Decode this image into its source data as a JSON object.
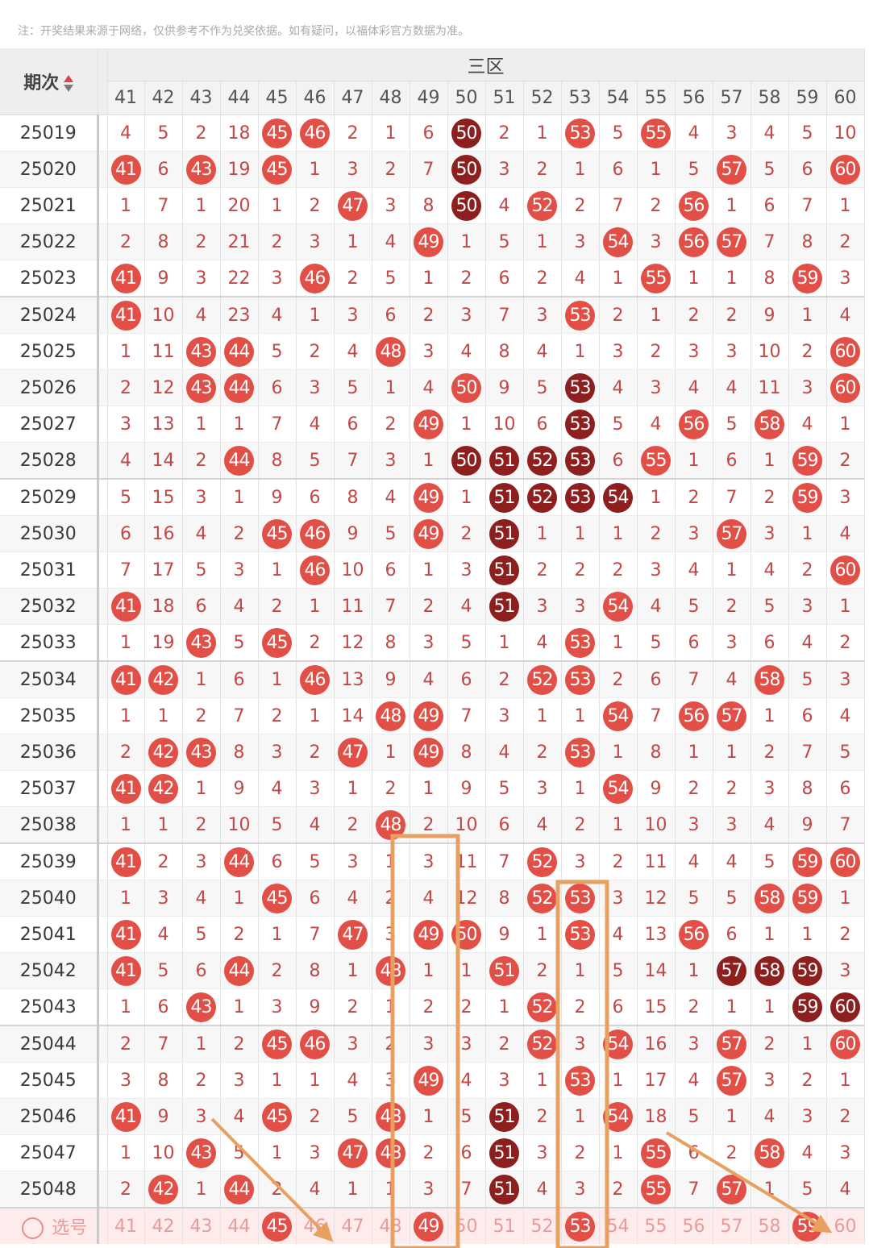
{
  "note": "注：开奖结果来源于网络，仅供参考不作为兑奖依据。如有疑问，以福体彩官方数据为准。",
  "header": {
    "period_label": "期次",
    "zone_label": "三区",
    "sort_icon": "sort-up-down-icon",
    "columns": [
      "41",
      "42",
      "43",
      "44",
      "45",
      "46",
      "47",
      "48",
      "49",
      "50",
      "51",
      "52",
      "53",
      "54",
      "55",
      "56",
      "57",
      "58",
      "59",
      "60"
    ]
  },
  "colors": {
    "hit": "#e14f47",
    "consecutive_hit": "#8e1f1f",
    "miss_text": "#c24848",
    "pick_bg": "#fdeceb",
    "annotation": "#e8a060"
  },
  "rows": [
    {
      "period": "25019",
      "cells": [
        "4",
        "5",
        "2",
        "18",
        "45",
        "46",
        "2",
        "1",
        "6",
        "50",
        "2",
        "1",
        "53",
        "5",
        "55",
        "4",
        "3",
        "4",
        "5",
        "10"
      ],
      "dark": [
        9
      ]
    },
    {
      "period": "25020",
      "cells": [
        "41",
        "6",
        "43",
        "19",
        "45",
        "1",
        "3",
        "2",
        "7",
        "50",
        "3",
        "2",
        "1",
        "6",
        "1",
        "5",
        "57",
        "5",
        "6",
        "60"
      ],
      "dark": [
        9
      ]
    },
    {
      "period": "25021",
      "cells": [
        "1",
        "7",
        "1",
        "20",
        "1",
        "2",
        "47",
        "3",
        "8",
        "50",
        "4",
        "52",
        "2",
        "7",
        "2",
        "56",
        "1",
        "6",
        "7",
        "1"
      ],
      "dark": [
        9
      ]
    },
    {
      "period": "25022",
      "cells": [
        "2",
        "8",
        "2",
        "21",
        "2",
        "3",
        "1",
        "4",
        "49",
        "1",
        "5",
        "1",
        "3",
        "54",
        "3",
        "56",
        "57",
        "7",
        "8",
        "2"
      ],
      "dark": []
    },
    {
      "period": "25023",
      "cells": [
        "41",
        "9",
        "3",
        "22",
        "3",
        "46",
        "2",
        "5",
        "1",
        "2",
        "6",
        "2",
        "4",
        "1",
        "55",
        "1",
        "1",
        "8",
        "59",
        "3"
      ],
      "dark": []
    },
    {
      "period": "25024",
      "cells": [
        "41",
        "10",
        "4",
        "23",
        "4",
        "1",
        "3",
        "6",
        "2",
        "3",
        "7",
        "3",
        "53",
        "2",
        "1",
        "2",
        "2",
        "9",
        "1",
        "4"
      ],
      "dark": []
    },
    {
      "period": "25025",
      "cells": [
        "1",
        "11",
        "43",
        "44",
        "5",
        "2",
        "4",
        "48",
        "3",
        "4",
        "8",
        "4",
        "1",
        "3",
        "2",
        "3",
        "3",
        "10",
        "2",
        "60"
      ],
      "dark": []
    },
    {
      "period": "25026",
      "cells": [
        "2",
        "12",
        "43",
        "44",
        "6",
        "3",
        "5",
        "1",
        "4",
        "50",
        "9",
        "5",
        "53",
        "4",
        "3",
        "4",
        "4",
        "11",
        "3",
        "60"
      ],
      "dark": [
        12
      ]
    },
    {
      "period": "25027",
      "cells": [
        "3",
        "13",
        "1",
        "1",
        "7",
        "4",
        "6",
        "2",
        "49",
        "1",
        "10",
        "6",
        "53",
        "5",
        "4",
        "56",
        "5",
        "58",
        "4",
        "1"
      ],
      "dark": [
        12
      ]
    },
    {
      "period": "25028",
      "cells": [
        "4",
        "14",
        "2",
        "44",
        "8",
        "5",
        "7",
        "3",
        "1",
        "50",
        "51",
        "52",
        "53",
        "6",
        "55",
        "1",
        "6",
        "1",
        "59",
        "2"
      ],
      "dark": [
        9,
        10,
        11,
        12
      ]
    },
    {
      "period": "25029",
      "cells": [
        "5",
        "15",
        "3",
        "1",
        "9",
        "6",
        "8",
        "4",
        "49",
        "1",
        "51",
        "52",
        "53",
        "54",
        "1",
        "2",
        "7",
        "2",
        "59",
        "3"
      ],
      "dark": [
        10,
        11,
        12,
        13
      ]
    },
    {
      "period": "25030",
      "cells": [
        "6",
        "16",
        "4",
        "2",
        "45",
        "46",
        "9",
        "5",
        "49",
        "2",
        "51",
        "1",
        "1",
        "1",
        "2",
        "3",
        "57",
        "3",
        "1",
        "4"
      ],
      "dark": [
        10
      ]
    },
    {
      "period": "25031",
      "cells": [
        "7",
        "17",
        "5",
        "3",
        "1",
        "46",
        "10",
        "6",
        "1",
        "3",
        "51",
        "2",
        "2",
        "2",
        "3",
        "4",
        "1",
        "4",
        "2",
        "60"
      ],
      "dark": [
        10
      ]
    },
    {
      "period": "25032",
      "cells": [
        "41",
        "18",
        "6",
        "4",
        "2",
        "1",
        "11",
        "7",
        "2",
        "4",
        "51",
        "3",
        "3",
        "54",
        "4",
        "5",
        "2",
        "5",
        "3",
        "1"
      ],
      "dark": [
        10
      ]
    },
    {
      "period": "25033",
      "cells": [
        "1",
        "19",
        "43",
        "5",
        "45",
        "2",
        "12",
        "8",
        "3",
        "5",
        "1",
        "4",
        "53",
        "1",
        "5",
        "6",
        "3",
        "6",
        "4",
        "2"
      ],
      "dark": []
    },
    {
      "period": "25034",
      "cells": [
        "41",
        "42",
        "1",
        "6",
        "1",
        "46",
        "13",
        "9",
        "4",
        "6",
        "2",
        "52",
        "53",
        "2",
        "6",
        "7",
        "4",
        "58",
        "5",
        "3"
      ],
      "dark": []
    },
    {
      "period": "25035",
      "cells": [
        "1",
        "1",
        "2",
        "7",
        "2",
        "1",
        "14",
        "48",
        "49",
        "7",
        "3",
        "1",
        "1",
        "54",
        "7",
        "56",
        "57",
        "1",
        "6",
        "4"
      ],
      "dark": []
    },
    {
      "period": "25036",
      "cells": [
        "2",
        "42",
        "43",
        "8",
        "3",
        "2",
        "47",
        "1",
        "49",
        "8",
        "4",
        "2",
        "53",
        "1",
        "8",
        "1",
        "1",
        "2",
        "7",
        "5"
      ],
      "dark": []
    },
    {
      "period": "25037",
      "cells": [
        "41",
        "42",
        "1",
        "9",
        "4",
        "3",
        "1",
        "2",
        "1",
        "9",
        "5",
        "3",
        "1",
        "54",
        "9",
        "2",
        "2",
        "3",
        "8",
        "6"
      ],
      "dark": []
    },
    {
      "period": "25038",
      "cells": [
        "1",
        "1",
        "2",
        "10",
        "5",
        "4",
        "2",
        "48",
        "2",
        "10",
        "6",
        "4",
        "2",
        "1",
        "10",
        "3",
        "3",
        "4",
        "9",
        "7"
      ],
      "dark": []
    },
    {
      "period": "25039",
      "cells": [
        "41",
        "2",
        "3",
        "44",
        "6",
        "5",
        "3",
        "1",
        "3",
        "11",
        "7",
        "52",
        "3",
        "2",
        "11",
        "4",
        "4",
        "5",
        "59",
        "60"
      ],
      "dark": []
    },
    {
      "period": "25040",
      "cells": [
        "1",
        "3",
        "4",
        "1",
        "45",
        "6",
        "4",
        "2",
        "4",
        "12",
        "8",
        "52",
        "53",
        "3",
        "12",
        "5",
        "5",
        "58",
        "59",
        "1"
      ],
      "dark": []
    },
    {
      "period": "25041",
      "cells": [
        "41",
        "4",
        "5",
        "2",
        "1",
        "7",
        "47",
        "3",
        "49",
        "50",
        "9",
        "1",
        "53",
        "4",
        "13",
        "56",
        "6",
        "1",
        "1",
        "2"
      ],
      "dark": []
    },
    {
      "period": "25042",
      "cells": [
        "41",
        "5",
        "6",
        "44",
        "2",
        "8",
        "1",
        "48",
        "1",
        "1",
        "51",
        "2",
        "1",
        "5",
        "14",
        "1",
        "57",
        "58",
        "59",
        "3"
      ],
      "dark": [
        16,
        17,
        18
      ]
    },
    {
      "period": "25043",
      "cells": [
        "1",
        "6",
        "43",
        "1",
        "3",
        "9",
        "2",
        "1",
        "2",
        "2",
        "1",
        "52",
        "2",
        "6",
        "15",
        "2",
        "1",
        "1",
        "59",
        "60"
      ],
      "dark": [
        18,
        19
      ]
    },
    {
      "period": "25044",
      "cells": [
        "2",
        "7",
        "1",
        "2",
        "45",
        "46",
        "3",
        "2",
        "3",
        "3",
        "2",
        "52",
        "3",
        "54",
        "16",
        "3",
        "57",
        "2",
        "1",
        "60"
      ],
      "dark": []
    },
    {
      "period": "25045",
      "cells": [
        "3",
        "8",
        "2",
        "3",
        "1",
        "1",
        "4",
        "3",
        "49",
        "4",
        "3",
        "1",
        "53",
        "1",
        "17",
        "4",
        "57",
        "3",
        "2",
        "1"
      ],
      "dark": []
    },
    {
      "period": "25046",
      "cells": [
        "41",
        "9",
        "3",
        "4",
        "45",
        "2",
        "5",
        "48",
        "1",
        "5",
        "51",
        "2",
        "1",
        "54",
        "18",
        "5",
        "1",
        "4",
        "3",
        "2"
      ],
      "dark": [
        10
      ]
    },
    {
      "period": "25047",
      "cells": [
        "1",
        "10",
        "43",
        "5",
        "1",
        "3",
        "47",
        "48",
        "2",
        "6",
        "51",
        "3",
        "2",
        "1",
        "55",
        "6",
        "2",
        "58",
        "4",
        "3"
      ],
      "dark": [
        10
      ]
    },
    {
      "period": "25048",
      "cells": [
        "2",
        "42",
        "1",
        "44",
        "2",
        "4",
        "1",
        "1",
        "3",
        "7",
        "51",
        "4",
        "3",
        "2",
        "55",
        "7",
        "57",
        "1",
        "5",
        "4"
      ],
      "dark": [
        10
      ]
    }
  ],
  "pick": {
    "label": "选号",
    "selected": [
      "45",
      "49",
      "53",
      "59"
    ]
  }
}
